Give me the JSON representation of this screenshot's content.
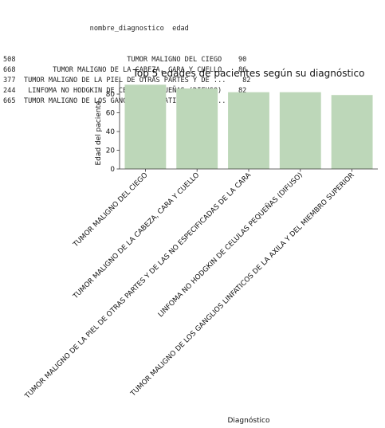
{
  "table": {
    "columns": [
      "nombre_diagnostico",
      "edad"
    ],
    "rows": [
      {
        "index": "508",
        "nombre_diagnostico": "TUMOR MALIGNO DEL CIEGO",
        "edad": "90"
      },
      {
        "index": "668",
        "nombre_diagnostico": "TUMOR MALIGNO DE LA CABEZA, CARA Y CUELLO",
        "edad": "86"
      },
      {
        "index": "377",
        "nombre_diagnostico": "TUMOR MALIGNO DE LA PIEL DE OTRAS PARTES Y DE ...",
        "edad": "82"
      },
      {
        "index": "244",
        "nombre_diagnostico": "LINFOMA NO HODGKIN DE CELULAS PEQUEÑAS (DIFUSO)",
        "edad": "82"
      },
      {
        "index": "665",
        "nombre_diagnostico": "TUMOR MALIGNO DE LOS GANGLIOS LINFATICOS DE LA...",
        "edad": "79"
      }
    ]
  },
  "chart_data": {
    "type": "bar",
    "title": "Top 5 edades de pacientes según su diagnóstico",
    "xlabel": "Diagnóstico",
    "ylabel": "Edad del paciente",
    "categories": [
      "TUMOR MALIGNO DEL CIEGO",
      "TUMOR MALIGNO DE LA CABEZA, CARA Y CUELLO",
      "TUMOR MALIGNO DE LA PIEL DE OTRAS PARTES Y DE LAS NO ESPECIFICADAS DE LA CARA",
      "LINFOMA NO HODGKIN DE CELULAS PEQUEÑAS (DIFUSO)",
      "TUMOR MALIGNO DE LOS GANGLIOS LINFATICOS DE LA AXILA Y DEL MIEMBRO SUPERIOR"
    ],
    "values": [
      90,
      86,
      82,
      82,
      79
    ],
    "ylim": [
      0,
      94.5
    ],
    "yticks": [
      0,
      20,
      40,
      60,
      80
    ],
    "bar_color": "#bdd7b9",
    "grid": false
  }
}
